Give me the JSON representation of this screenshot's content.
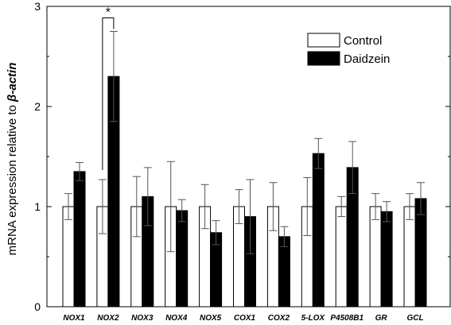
{
  "chart_data": {
    "type": "bar",
    "categories": [
      "NOX1",
      "NOX2",
      "NOX3",
      "NOX4",
      "NOX5",
      "COX1",
      "COX2",
      "5-LOX",
      "P4508B1",
      "GR",
      "GCL"
    ],
    "series": [
      {
        "name": "Control",
        "values": [
          1.0,
          1.0,
          1.0,
          1.0,
          1.0,
          1.0,
          1.0,
          1.0,
          1.0,
          1.0,
          1.0
        ],
        "errors": [
          0.13,
          0.27,
          0.3,
          0.45,
          0.22,
          0.17,
          0.24,
          0.29,
          0.1,
          0.13,
          0.13
        ],
        "color": "#ffffff"
      },
      {
        "name": "Daidzein",
        "values": [
          1.35,
          2.3,
          1.1,
          0.96,
          0.74,
          0.9,
          0.7,
          1.53,
          1.39,
          0.95,
          1.08
        ],
        "errors": [
          0.09,
          0.45,
          0.29,
          0.11,
          0.12,
          0.37,
          0.1,
          0.15,
          0.26,
          0.1,
          0.16
        ],
        "color": "#000000"
      }
    ],
    "ylim": [
      0,
      3
    ],
    "yticks": [
      0,
      1,
      2,
      3
    ],
    "ylabel_prefix": "mRNA expression relative to ",
    "ylabel_gene": "β-actin",
    "xlabel": "",
    "significance": [
      {
        "category": "NOX2",
        "label": "*"
      }
    ],
    "legend_position": "top-right",
    "grid": false
  }
}
